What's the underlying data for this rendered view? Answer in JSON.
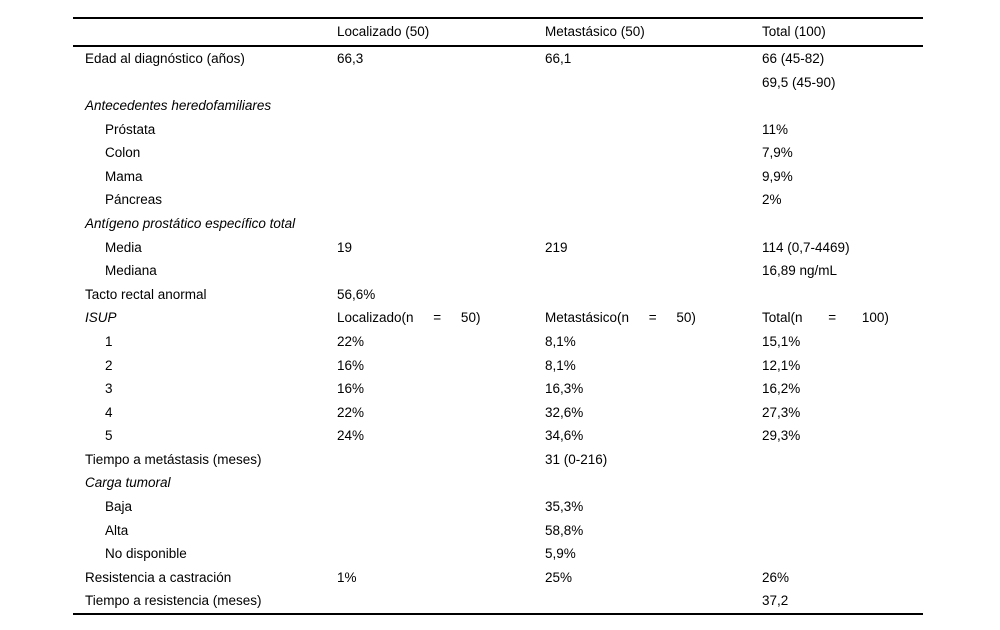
{
  "table": {
    "columns": [
      "Localizado (50)",
      "Metastásico (50)",
      "Total (100)"
    ],
    "rows": [
      {
        "label": "Edad al diagnóstico (años)",
        "c1": "66,3",
        "c2": "66,1",
        "c3": "66 (45-82)",
        "c3b": "69,5 (45-90)"
      },
      {
        "label": "Antecedentes heredofamiliares"
      },
      {
        "label": "Próstata",
        "c3": "11%"
      },
      {
        "label": "Colon",
        "c3": "7,9%"
      },
      {
        "label": "Mama",
        "c3": "9,9%"
      },
      {
        "label": "Páncreas",
        "c3": "2%"
      },
      {
        "label": "Antígeno prostático específico total"
      },
      {
        "label": "Media",
        "c1": "19",
        "c2": "219",
        "c3": "114 (0,7-4469)"
      },
      {
        "label": "Mediana",
        "c3": "16,89 ng/mL"
      },
      {
        "label": "Tacto rectal anormal",
        "c1": "56,6%"
      },
      {
        "label": "ISUP",
        "c1": "Localizado(n = 50)",
        "c2": "Metastásico(n = 50)",
        "c3": "Total(n = 100)"
      },
      {
        "label": "1",
        "c1": "22%",
        "c2": "8,1%",
        "c3": "15,1%"
      },
      {
        "label": "2",
        "c1": "16%",
        "c2": "8,1%",
        "c3": "12,1%"
      },
      {
        "label": "3",
        "c1": "16%",
        "c2": "16,3%",
        "c3": "16,2%"
      },
      {
        "label": "4",
        "c1": "22%",
        "c2": "32,6%",
        "c3": "27,3%"
      },
      {
        "label": "5",
        "c1": "24%",
        "c2": "34,6%",
        "c3": "29,3%"
      },
      {
        "label": "Tiempo a metástasis (meses)",
        "c2": "31 (0-216)"
      },
      {
        "label": "Carga tumoral"
      },
      {
        "label": "Baja",
        "c2": "35,3%"
      },
      {
        "label": "Alta",
        "c2": "58,8%"
      },
      {
        "label": "No disponible",
        "c2": "5,9%"
      },
      {
        "label": "Resistencia a castración",
        "c1": "1%",
        "c2": "25%",
        "c3": "26%"
      },
      {
        "label": "Tiempo a resistencia (meses)",
        "c3": "37,2"
      }
    ]
  }
}
